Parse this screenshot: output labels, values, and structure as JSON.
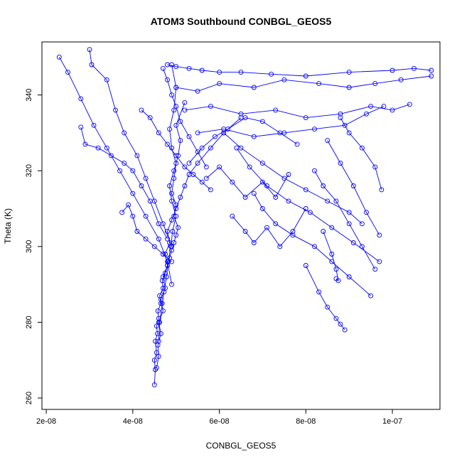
{
  "chart_data": {
    "type": "scatter",
    "title": "ATOM3 Southbound CONBGL_GEOS5",
    "xlabel": "CONBGL_GEOS5",
    "ylabel": "Theta (K)",
    "xlim": [
      1.9e-08,
      1.11e-07
    ],
    "ylim": [
      257,
      354
    ],
    "x_ticks": [
      2e-08,
      4e-08,
      6e-08,
      8e-08,
      1e-07
    ],
    "x_tick_labels": [
      "2e-08",
      "4e-08",
      "6e-08",
      "8e-08",
      "1e-07"
    ],
    "y_ticks": [
      260,
      280,
      300,
      320,
      340
    ],
    "y_tick_labels": [
      "260",
      "280",
      "300",
      "320",
      "340"
    ],
    "grid": false,
    "legend": "none",
    "point_style": "open-circle-connected",
    "colors": {
      "series": "#0000ff",
      "axis": "#000000",
      "background": "#ffffff"
    },
    "series": [
      {
        "x": [
          4.5e-08,
          4.52e-08,
          4.5e-08,
          4.55e-08,
          4.52e-08,
          4.57e-08,
          4.55e-08,
          4.6e-08,
          4.58e-08,
          4.65e-08,
          4.62e-08,
          4.7e-08,
          4.68e-08,
          4.75e-08,
          4.8e-08,
          4.85e-08,
          4.9e-08,
          4.95e-08,
          5e-08,
          5.05e-08,
          4.95e-08,
          5e-08,
          4.9e-08,
          4.95e-08,
          5e-08,
          4.9e-08,
          4.85e-08,
          4.95e-08,
          5e-08,
          4.9e-08
        ],
        "y": [
          263.5,
          267.5,
          270,
          272,
          275,
          277,
          279,
          281,
          283,
          285,
          287,
          289,
          291,
          293,
          295,
          297,
          299,
          301,
          303,
          305,
          308,
          311,
          314,
          318,
          322,
          326,
          331,
          336,
          342,
          348
        ]
      },
      {
        "x": [
          4.55e-08,
          4.6e-08,
          4.58e-08,
          4.65e-08,
          4.6e-08,
          4.7e-08,
          4.65e-08,
          4.75e-08,
          4.7e-08,
          4.8e-08,
          4.75e-08,
          4.85e-08,
          4.8e-08,
          4.9e-08,
          5e-08,
          5.1e-08,
          5.2e-08,
          5.3e-08,
          5.5e-08,
          5.8e-08,
          6.1e-08,
          6.5e-08
        ],
        "y": [
          268,
          271,
          274,
          277,
          280,
          283,
          286,
          289,
          292,
          295,
          298,
          301,
          304,
          307,
          310,
          313,
          316,
          319,
          322,
          326,
          330,
          334
        ]
      },
      {
        "x": [
          4.6e-08,
          4.62e-08,
          4.68e-08,
          4.72e-08,
          4.78e-08,
          4.82e-08,
          4.88e-08,
          4.92e-08,
          5e-08,
          4.9e-08,
          4.85e-08,
          4.95e-08,
          5.05e-08,
          5.1e-08,
          5e-08,
          5.2e-08
        ],
        "y": [
          275,
          280,
          285,
          288,
          292,
          296,
          300,
          304,
          308,
          312,
          316,
          320,
          324,
          328,
          332,
          338
        ]
      },
      {
        "x": [
          2.3e-08,
          2.5e-08,
          2.8e-08,
          3.1e-08,
          3.4e-08,
          3.7e-08,
          4e-08,
          4.3e-08,
          4.6e-08,
          4.8e-08,
          4.9e-08
        ],
        "y": [
          350,
          346,
          339,
          332,
          326,
          320,
          314,
          308,
          302,
          296,
          290
        ]
      },
      {
        "x": [
          3e-08,
          3.05e-08,
          3.4e-08,
          3.6e-08,
          3.8e-08,
          4.1e-08,
          4.3e-08,
          4.5e-08,
          4.7e-08,
          4.9e-08
        ],
        "y": [
          352,
          348,
          344,
          336,
          330,
          324,
          318,
          312,
          306,
          300
        ]
      },
      {
        "x": [
          2.8e-08,
          2.9e-08,
          3.2e-08,
          3.5e-08,
          3.8e-08,
          4e-08,
          4.2e-08,
          4.4e-08,
          4.6e-08,
          4.8e-08
        ],
        "y": [
          331.5,
          327,
          326,
          324,
          322,
          320,
          316,
          312,
          306,
          302
        ]
      },
      {
        "x": [
          3.75e-08,
          3.9e-08,
          4e-08,
          4.1e-08,
          4.3e-08,
          4.5e-08,
          4.7e-08,
          4.9e-08
        ],
        "y": [
          309,
          311,
          308,
          304,
          302,
          300,
          298,
          296
        ]
      },
      {
        "x": [
          4.8e-08,
          5e-08,
          5.3e-08,
          5.6e-08,
          6e-08,
          6.5e-08,
          7.2e-08,
          8e-08,
          9e-08,
          1e-07,
          1.05e-07,
          1.09e-07
        ],
        "y": [
          348,
          347.5,
          347,
          346.5,
          346,
          346,
          345.5,
          345,
          346,
          346.5,
          347,
          346.5
        ]
      },
      {
        "x": [
          5e-08,
          5.5e-08,
          6e-08,
          6.8e-08,
          7.5e-08,
          8.3e-08,
          9e-08,
          9.6e-08,
          1.02e-07,
          1.09e-07
        ],
        "y": [
          342,
          341,
          343,
          342,
          344,
          343,
          342,
          343,
          344,
          345
        ]
      },
      {
        "x": [
          5.2e-08,
          5.8e-08,
          6.5e-08,
          7.3e-08,
          8e-08,
          8.8e-08,
          9.5e-08,
          1e-07,
          1.04e-07
        ],
        "y": [
          336,
          337,
          335,
          336,
          334,
          335,
          337,
          336,
          337.5
        ]
      },
      {
        "x": [
          5.5e-08,
          6.1e-08,
          6.8e-08,
          7.5e-08,
          8.2e-08,
          8.9e-08,
          9.4e-08,
          9.8e-08
        ],
        "y": [
          330,
          331,
          329,
          330,
          331,
          332,
          335,
          337
        ]
      },
      {
        "x": [
          6.1e-08,
          6.5e-08,
          7e-08,
          7.5e-08,
          8e-08,
          8.5e-08,
          9e-08,
          9.3e-08
        ],
        "y": [
          330,
          326,
          322,
          318,
          315,
          312,
          309,
          306
        ]
      },
      {
        "x": [
          6.4e-08,
          6.7e-08,
          7.1e-08,
          7.6e-08,
          8.1e-08,
          8.6e-08,
          9.1e-08,
          9.7e-08
        ],
        "y": [
          326,
          321,
          316,
          312,
          309,
          305,
          301,
          296
        ]
      },
      {
        "x": [
          6.8e-08,
          7e-08,
          7.3e-08,
          7.7e-08,
          8.2e-08,
          8.6e-08,
          9e-08,
          9.5e-08
        ],
        "y": [
          314,
          310,
          306,
          303,
          300,
          296,
          292,
          287
        ]
      },
      {
        "x": [
          8e-08,
          8.3e-08,
          8.5e-08,
          8.7e-08,
          8.8e-08,
          8.9e-08
        ],
        "y": [
          295,
          288,
          284,
          281,
          279.5,
          278
        ]
      },
      {
        "x": [
          8.4e-08,
          8.6e-08,
          8.7e-08,
          8.75e-08,
          8.7e-08
        ],
        "y": [
          304,
          298,
          294,
          291,
          291.5
        ]
      },
      {
        "x": [
          8.2e-08,
          8.4e-08,
          8.7e-08,
          9e-08,
          9.3e-08,
          9.6e-08
        ],
        "y": [
          320,
          316,
          312,
          306,
          300,
          294
        ]
      },
      {
        "x": [
          8.5e-08,
          8.8e-08,
          9.1e-08,
          9.4e-08,
          9.7e-08
        ],
        "y": [
          328,
          322,
          316,
          309,
          303
        ]
      },
      {
        "x": [
          8.8e-08,
          9e-08,
          9.3e-08,
          9.6e-08,
          9.75e-08
        ],
        "y": [
          334,
          330,
          326,
          321,
          315
        ]
      },
      {
        "x": [
          5.3e-08,
          5.6e-08,
          5.9e-08,
          6.2e-08,
          6.6e-08,
          7e-08,
          7.4e-08,
          7.8e-08
        ],
        "y": [
          322,
          326,
          329,
          331,
          334,
          333,
          330,
          327
        ]
      },
      {
        "x": [
          6.3e-08,
          6.6e-08,
          6.8e-08,
          7.1e-08,
          7.4e-08,
          7.7e-08,
          8e-08
        ],
        "y": [
          308,
          304,
          301,
          305,
          300,
          304,
          310
        ]
      },
      {
        "x": [
          5.7e-08,
          6e-08,
          6.3e-08,
          6.6e-08,
          7e-08,
          7.3e-08,
          7.6e-08
        ],
        "y": [
          318,
          321,
          317,
          313,
          317,
          313,
          319
        ]
      },
      {
        "x": [
          4.2e-08,
          4.4e-08,
          4.6e-08,
          4.8e-08,
          5e-08,
          5.2e-08,
          5.4e-08,
          5.6e-08,
          5.8e-08
        ],
        "y": [
          336,
          334,
          330,
          327,
          324,
          321,
          319,
          317,
          315
        ]
      },
      {
        "x": [
          4.7e-08,
          4.8e-08,
          4.9e-08,
          5e-08,
          5.1e-08,
          5.3e-08,
          5.5e-08,
          5.7e-08
        ],
        "y": [
          347,
          344,
          340,
          337,
          333,
          329,
          325,
          321
        ]
      }
    ]
  }
}
